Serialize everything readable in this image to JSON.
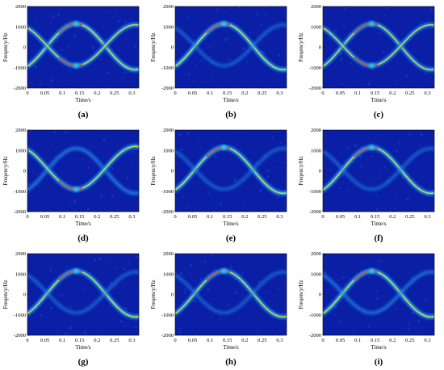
{
  "chart_data": [
    {
      "type": "heatmap",
      "label": "(a)",
      "xlabel": "Time/s",
      "ylabel": "Freqency/Hz",
      "xlim": [
        0,
        0.32
      ],
      "ylim": [
        -2000,
        2000
      ],
      "xticks": [
        "0",
        "0.05",
        "0.1",
        "0.15",
        "0.2",
        "0.25",
        "0.3"
      ],
      "yticks": [
        "2000",
        "1000",
        "0",
        "-1000",
        "-2000"
      ],
      "series": [
        {
          "name": "",
          "peak_t": 0.14,
          "peak_f": 1150,
          "trough_f": -1100,
          "strength": 1.0
        },
        {
          "name": "",
          "peak_t": 0.14,
          "peak_f": -900,
          "trough_f": 1100,
          "strength": 0.85
        }
      ]
    },
    {
      "type": "heatmap",
      "label": "(b)",
      "xlabel": "Time/s",
      "ylabel": "Freqency/Hz",
      "xlim": [
        0,
        0.32
      ],
      "ylim": [
        -2000,
        2000
      ],
      "xticks": [
        "0",
        "0.05",
        "0.1",
        "0.15",
        "0.2",
        "0.25",
        "0.3"
      ],
      "yticks": [
        "2000",
        "1000",
        "0",
        "-1000",
        "-2000"
      ],
      "series": [
        {
          "name": "",
          "peak_t": 0.14,
          "peak_f": 1150,
          "trough_f": -1100,
          "strength": 1.0
        },
        {
          "name": "",
          "peak_t": 0.14,
          "peak_f": -900,
          "trough_f": 1100,
          "strength": 0.35
        }
      ]
    },
    {
      "type": "heatmap",
      "label": "(c)",
      "xlabel": "Time/s",
      "ylabel": "Freqency/Hz",
      "xlim": [
        0,
        0.32
      ],
      "ylim": [
        -2000,
        2000
      ],
      "xticks": [
        "0",
        "0.05",
        "0.1",
        "0.15",
        "0.2",
        "0.25",
        "0.3"
      ],
      "yticks": [
        "2000",
        "1000",
        "0",
        "-1000",
        "-2000"
      ],
      "series": [
        {
          "name": "",
          "peak_t": 0.14,
          "peak_f": 1150,
          "trough_f": -1100,
          "strength": 0.85
        },
        {
          "name": "",
          "peak_t": 0.14,
          "peak_f": -900,
          "trough_f": 1100,
          "strength": 0.8
        }
      ]
    },
    {
      "type": "heatmap",
      "label": "(d)",
      "xlabel": "Time/s",
      "ylabel": "Freqency/Hz",
      "xlim": [
        0,
        0.32
      ],
      "ylim": [
        -2000,
        2000
      ],
      "xticks": [
        "0",
        "0.05",
        "0.1",
        "0.15",
        "0.2",
        "0.25",
        "0.3"
      ],
      "yticks": [
        "2000",
        "1000",
        "0",
        "-1000",
        "-2000"
      ],
      "series": [
        {
          "name": "",
          "peak_t": 0.14,
          "peak_f": 1100,
          "trough_f": -1100,
          "strength": 0.5
        },
        {
          "name": "",
          "peak_t": 0.14,
          "peak_f": -900,
          "trough_f": 1200,
          "strength": 0.95
        }
      ]
    },
    {
      "type": "heatmap",
      "label": "(e)",
      "xlabel": "Time/s",
      "ylabel": "Freqency/Hz",
      "xlim": [
        0,
        0.32
      ],
      "ylim": [
        -2000,
        2000
      ],
      "xticks": [
        "0",
        "0.05",
        "0.1",
        "0.15",
        "0.2",
        "0.25",
        "0.3"
      ],
      "yticks": [
        "2000",
        "1000",
        "0",
        "-1000",
        "-2000"
      ],
      "series": [
        {
          "name": "",
          "peak_t": 0.14,
          "peak_f": 1150,
          "trough_f": -1100,
          "strength": 1.0
        },
        {
          "name": "",
          "peak_t": 0.14,
          "peak_f": -900,
          "trough_f": 1100,
          "strength": 0.35
        }
      ]
    },
    {
      "type": "heatmap",
      "label": "(f)",
      "xlabel": "Time/s",
      "ylabel": "Freqency/Hz",
      "xlim": [
        0,
        0.32
      ],
      "ylim": [
        -2000,
        2000
      ],
      "xticks": [
        "0",
        "0.05",
        "0.1",
        "0.15",
        "0.2",
        "0.25",
        "0.3"
      ],
      "yticks": [
        "2000",
        "1000",
        "0",
        "-1000",
        "-2000"
      ],
      "series": [
        {
          "name": "",
          "peak_t": 0.14,
          "peak_f": 1150,
          "trough_f": -1100,
          "strength": 0.95
        },
        {
          "name": "",
          "peak_t": 0.14,
          "peak_f": -900,
          "trough_f": 1100,
          "strength": 0.35
        }
      ]
    },
    {
      "type": "heatmap",
      "label": "(g)",
      "xlabel": "Time/s",
      "ylabel": "Freqency/Hz",
      "xlim": [
        0,
        0.32
      ],
      "ylim": [
        -2000,
        2000
      ],
      "xticks": [
        "0",
        "0.05",
        "0.1",
        "0.15",
        "0.2",
        "0.25",
        "0.3"
      ],
      "yticks": [
        "2000",
        "1000",
        "0",
        "-1000",
        "-2000"
      ],
      "series": [
        {
          "name": "",
          "peak_t": 0.14,
          "peak_f": 1150,
          "trough_f": -1100,
          "strength": 0.95
        },
        {
          "name": "",
          "peak_t": 0.14,
          "peak_f": -900,
          "trough_f": 1100,
          "strength": 0.35
        }
      ]
    },
    {
      "type": "heatmap",
      "label": "(h)",
      "xlabel": "Time/s",
      "ylabel": "Freqency/Hz",
      "xlim": [
        0,
        0.32
      ],
      "ylim": [
        -2000,
        2000
      ],
      "xticks": [
        "0",
        "0.05",
        "0.1",
        "0.15",
        "0.2",
        "0.25",
        "0.3"
      ],
      "yticks": [
        "2000",
        "1000",
        "0",
        "-1000",
        "-2000"
      ],
      "series": [
        {
          "name": "",
          "peak_t": 0.14,
          "peak_f": 1150,
          "trough_f": -1100,
          "strength": 0.9
        },
        {
          "name": "",
          "peak_t": 0.14,
          "peak_f": -900,
          "trough_f": 1100,
          "strength": 0.35
        }
      ]
    },
    {
      "type": "heatmap",
      "label": "(i)",
      "xlabel": "Time/s",
      "ylabel": "Freqency/Hz",
      "xlim": [
        0,
        0.32
      ],
      "ylim": [
        -2000,
        2000
      ],
      "xticks": [
        "0",
        "0.05",
        "0.1",
        "0.15",
        "0.2",
        "0.25",
        "0.3"
      ],
      "yticks": [
        "2000",
        "1000",
        "0",
        "-1000",
        "-2000"
      ],
      "series": [
        {
          "name": "",
          "peak_t": 0.14,
          "peak_f": 1150,
          "trough_f": -1100,
          "strength": 1.0
        },
        {
          "name": "",
          "peak_t": 0.14,
          "peak_f": -900,
          "trough_f": 1100,
          "strength": 0.45
        }
      ]
    }
  ],
  "colors": {
    "background": "#0a1fa6",
    "low": "#1d46d8",
    "mid": "#2ad6f0",
    "high": "#f2e316",
    "peak": "#e8261c"
  }
}
